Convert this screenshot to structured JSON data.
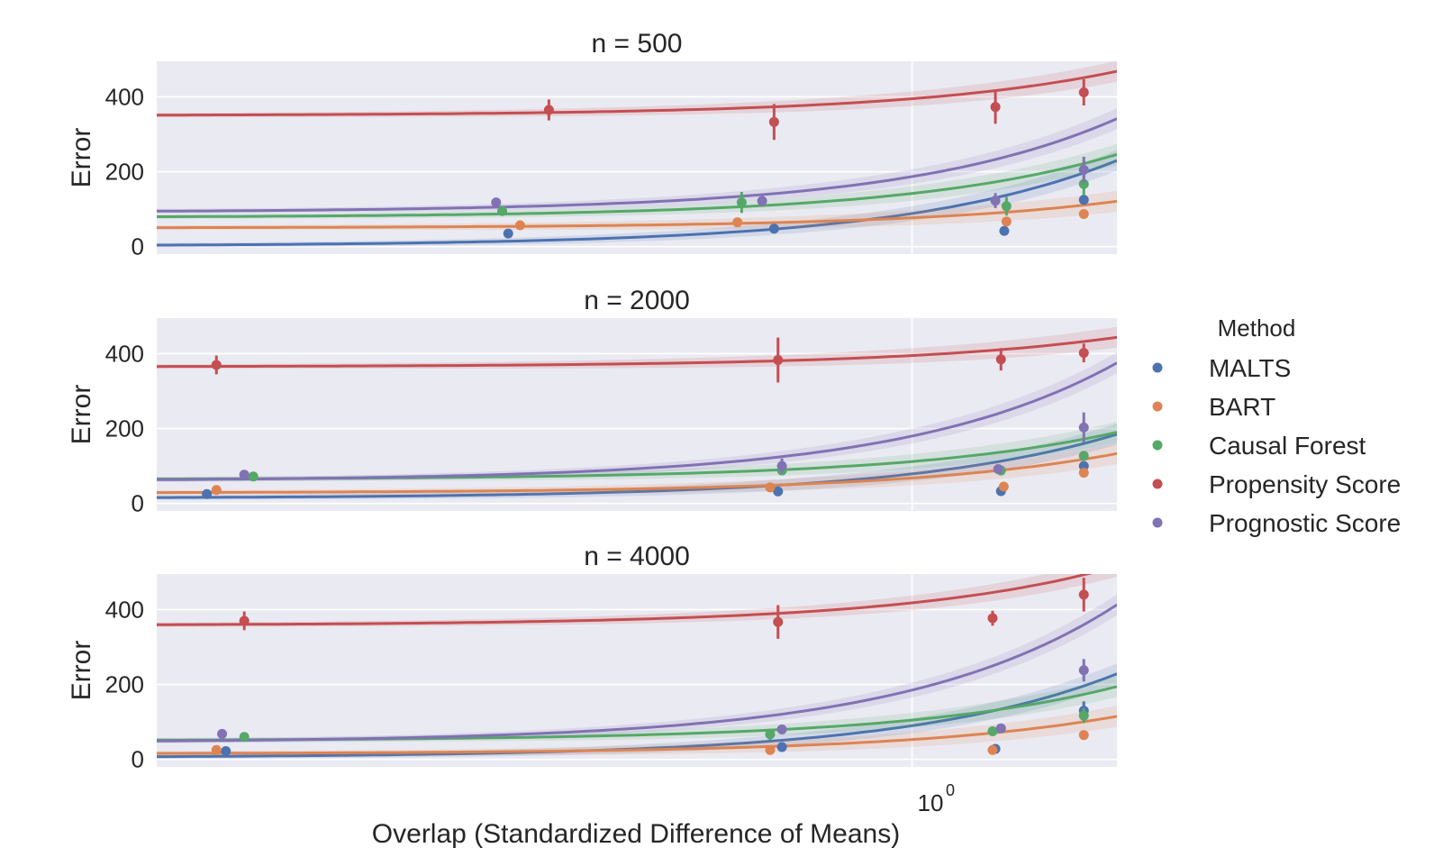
{
  "figure": {
    "xlabel": "Overlap (Standardized Difference of Means)",
    "x_scale": "log",
    "x_tick_label_base": "10",
    "x_tick_label_exp": "0",
    "legend_title": "Method",
    "legend_placement": "right"
  },
  "colors": {
    "MALTS": "#4c72b0",
    "BART": "#dd8452",
    "Causal Forest": "#55a868",
    "Propensity Score": "#c44e52",
    "Prognostic Score": "#8172b3"
  },
  "methods": [
    "MALTS",
    "BART",
    "Causal Forest",
    "Propensity Score",
    "Prognostic Score"
  ],
  "chart_data": [
    {
      "type": "scatter",
      "title": "n = 500",
      "ylabel": "Error",
      "xlim": [
        0.305,
        1.38
      ],
      "ylim": [
        -20,
        495
      ],
      "yticks": [
        0,
        200,
        400
      ],
      "grid": true,
      "series": [
        {
          "name": "MALTS",
          "points": [
            {
              "x": 0.53,
              "y": 35
            },
            {
              "x": 0.805,
              "y": 48
            },
            {
              "x": 1.156,
              "y": 42
            },
            {
              "x": 1.31,
              "y": 125
            }
          ],
          "fit": {
            "a": 1.5,
            "b": 87
          }
        },
        {
          "name": "BART",
          "points": [
            {
              "x": 0.54,
              "y": 57
            },
            {
              "x": 0.76,
              "y": 65
            },
            {
              "x": 1.16,
              "y": 67
            },
            {
              "x": 1.31,
              "y": 87
            }
          ],
          "fit": {
            "a": 50,
            "b": 27
          }
        },
        {
          "name": "Causal Forest",
          "points": [
            {
              "x": 0.525,
              "y": 95,
              "err": 10
            },
            {
              "x": 0.765,
              "y": 118,
              "err": 28
            },
            {
              "x": 1.16,
              "y": 108,
              "err": 25
            },
            {
              "x": 1.31,
              "y": 167,
              "err": 30
            }
          ],
          "fit": {
            "a": 78,
            "b": 64
          }
        },
        {
          "name": "Propensity Score",
          "points": [
            {
              "x": 0.565,
              "y": 365,
              "err": 28
            },
            {
              "x": 0.805,
              "y": 333,
              "err": 48
            },
            {
              "x": 1.14,
              "y": 373,
              "err": 45
            },
            {
              "x": 1.31,
              "y": 412,
              "err": 35
            }
          ],
          "fit": {
            "a": 350,
            "b": 45
          }
        },
        {
          "name": "Prognostic Score",
          "points": [
            {
              "x": 0.52,
              "y": 118
            },
            {
              "x": 0.79,
              "y": 122,
              "err": 15
            },
            {
              "x": 1.14,
              "y": 123,
              "err": 20
            },
            {
              "x": 1.31,
              "y": 205,
              "err": 35
            }
          ],
          "fit": {
            "a": 92,
            "b": 95
          }
        }
      ]
    },
    {
      "type": "scatter",
      "title": "n = 2000",
      "ylabel": "Error",
      "xlim": [
        0.305,
        1.38
      ],
      "ylim": [
        -20,
        495
      ],
      "yticks": [
        0,
        200,
        400
      ],
      "grid": true,
      "series": [
        {
          "name": "MALTS",
          "points": [
            {
              "x": 0.33,
              "y": 25
            },
            {
              "x": 0.81,
              "y": 32
            },
            {
              "x": 1.15,
              "y": 33
            },
            {
              "x": 1.31,
              "y": 100
            }
          ],
          "fit": {
            "a": 14,
            "b": 65
          }
        },
        {
          "name": "BART",
          "points": [
            {
              "x": 0.335,
              "y": 36
            },
            {
              "x": 0.8,
              "y": 43
            },
            {
              "x": 1.155,
              "y": 45
            },
            {
              "x": 1.31,
              "y": 82
            }
          ],
          "fit": {
            "a": 28,
            "b": 40
          }
        },
        {
          "name": "Causal Forest",
          "points": [
            {
              "x": 0.355,
              "y": 72
            },
            {
              "x": 0.815,
              "y": 88
            },
            {
              "x": 1.15,
              "y": 88
            },
            {
              "x": 1.31,
              "y": 127
            }
          ],
          "fit": {
            "a": 64,
            "b": 48
          }
        },
        {
          "name": "Propensity Score",
          "points": [
            {
              "x": 0.335,
              "y": 370,
              "err": 25
            },
            {
              "x": 0.81,
              "y": 383,
              "err": 60
            },
            {
              "x": 1.15,
              "y": 385,
              "err": 30
            },
            {
              "x": 1.31,
              "y": 402,
              "err": 25
            }
          ],
          "fit": {
            "a": 365,
            "b": 30
          }
        },
        {
          "name": "Prognostic Score",
          "points": [
            {
              "x": 0.35,
              "y": 77
            },
            {
              "x": 0.815,
              "y": 100,
              "err": 20
            },
            {
              "x": 1.145,
              "y": 92
            },
            {
              "x": 1.31,
              "y": 203,
              "err": 40
            }
          ],
          "fit": {
            "a": 60,
            "b": 120
          }
        }
      ]
    },
    {
      "type": "scatter",
      "title": "n = 4000",
      "ylabel": "Error",
      "xlim": [
        0.305,
        1.38
      ],
      "ylim": [
        -20,
        495
      ],
      "yticks": [
        0,
        200,
        400
      ],
      "grid": true,
      "series": [
        {
          "name": "MALTS",
          "points": [
            {
              "x": 0.34,
              "y": 22
            },
            {
              "x": 0.815,
              "y": 33
            },
            {
              "x": 1.14,
              "y": 28
            },
            {
              "x": 1.31,
              "y": 130,
              "err": 25
            }
          ],
          "fit": {
            "a": 5,
            "b": 85
          }
        },
        {
          "name": "BART",
          "points": [
            {
              "x": 0.335,
              "y": 25
            },
            {
              "x": 0.8,
              "y": 25
            },
            {
              "x": 1.135,
              "y": 25
            },
            {
              "x": 1.31,
              "y": 65
            }
          ],
          "fit": {
            "a": 15,
            "b": 38
          }
        },
        {
          "name": "Causal Forest",
          "points": [
            {
              "x": 0.35,
              "y": 60
            },
            {
              "x": 0.8,
              "y": 67,
              "err": 15
            },
            {
              "x": 1.135,
              "y": 75
            },
            {
              "x": 1.31,
              "y": 117,
              "err": 20
            }
          ],
          "fit": {
            "a": 50,
            "b": 55
          }
        },
        {
          "name": "Propensity Score",
          "points": [
            {
              "x": 0.35,
              "y": 370,
              "err": 25
            },
            {
              "x": 0.81,
              "y": 367,
              "err": 45
            },
            {
              "x": 1.135,
              "y": 377,
              "err": 20
            },
            {
              "x": 1.31,
              "y": 440,
              "err": 45
            }
          ],
          "fit": {
            "a": 358,
            "b": 60
          }
        },
        {
          "name": "Prognostic Score",
          "points": [
            {
              "x": 0.338,
              "y": 68
            },
            {
              "x": 0.815,
              "y": 80
            },
            {
              "x": 1.15,
              "y": 83
            },
            {
              "x": 1.31,
              "y": 238,
              "err": 30
            }
          ],
          "fit": {
            "a": 45,
            "b": 140
          }
        }
      ]
    }
  ]
}
